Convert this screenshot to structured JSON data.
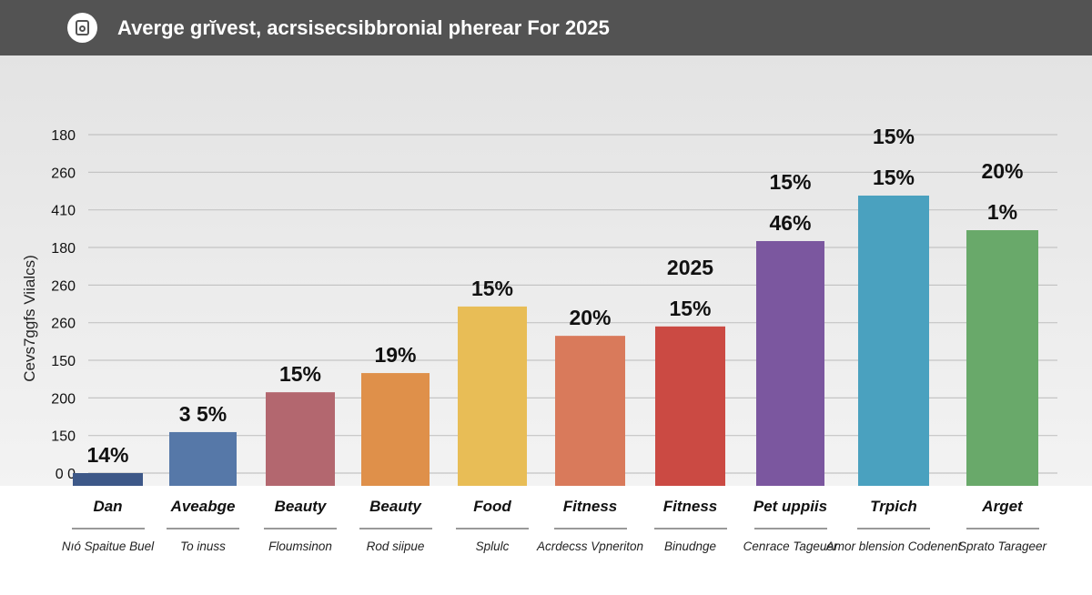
{
  "header": {
    "icon": "camera-icon",
    "title": "Averge grĭvest, acrsisecsibbronial pherear For 2025"
  },
  "chart_data": {
    "type": "bar",
    "title": "Averge grĭvest, acrsisecsibbronial pherear For 2025",
    "ylabel": "Cevs7ggfs Viialcs)",
    "xlabel": "",
    "yticks": [
      "0 0",
      "150",
      "200",
      "150",
      "260",
      "260",
      "180",
      "410",
      "260",
      "180"
    ],
    "ylim": [
      -0.34,
      9
    ],
    "grid": true,
    "categories": [
      "Dan",
      "Aveabge",
      "Beauty",
      "Beauty",
      "Food",
      "Fitness",
      "Fitness",
      "Pet uppiis",
      "Trpich",
      "Arget"
    ],
    "subcategories": [
      "Nıó Spaitue Buel",
      "To inuss",
      "Floumsinon",
      "Rod siipue",
      "Splulc",
      "Acrdecss Vpneriton",
      "Binudnge",
      "Cenrace Tageuer",
      "Amor blension Codenent",
      "Sprato Tarageer"
    ],
    "values": [
      0.0,
      1.09,
      2.15,
      2.66,
      4.43,
      3.65,
      3.9,
      6.17,
      7.38,
      6.46
    ],
    "data_labels": [
      [
        "14%"
      ],
      [
        "3 5%"
      ],
      [
        "15%"
      ],
      [
        "19%"
      ],
      [
        "15%"
      ],
      [
        "20%"
      ],
      [
        "15%",
        "2025"
      ],
      [
        "46%",
        "15%"
      ],
      [
        "15%",
        "15%"
      ],
      [
        "1%",
        "20%"
      ]
    ],
    "colors": [
      "#3d5888",
      "#5678a8",
      "#b3676f",
      "#df904a",
      "#e8bd56",
      "#d97a5b",
      "#cb4a43",
      "#7b579f",
      "#4aa1bf",
      "#69a96a"
    ]
  }
}
